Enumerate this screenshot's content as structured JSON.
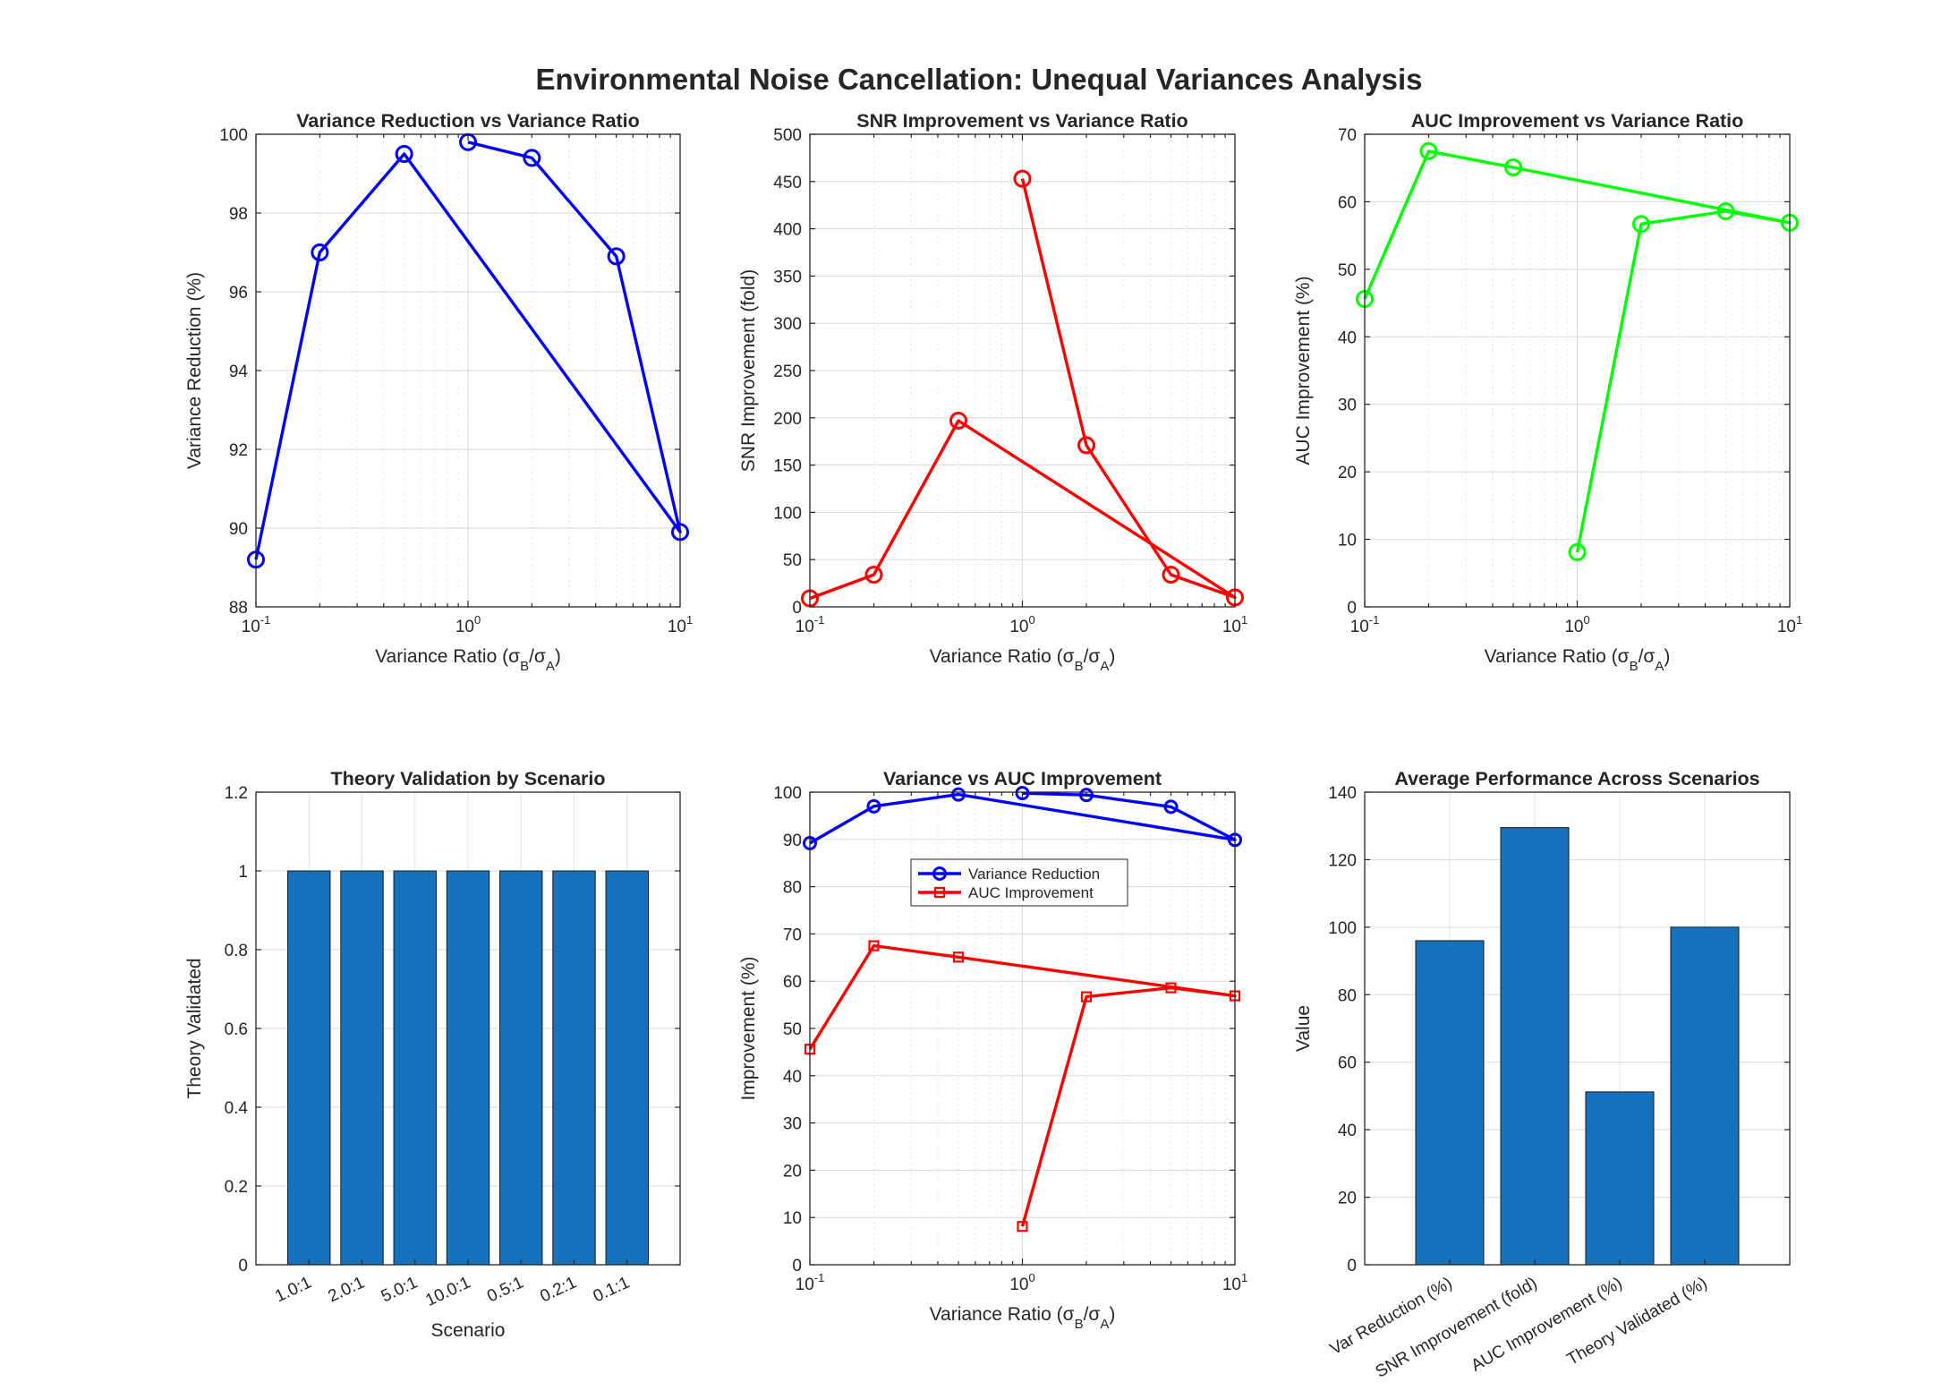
{
  "figure": {
    "title": "Environmental Noise Cancellation: Unequal Variances Analysis"
  },
  "chart_data": [
    {
      "id": "p1",
      "type": "line",
      "title": "Variance Reduction vs Variance Ratio",
      "xlabel": "Variance Ratio (σB/σA)",
      "ylabel": "Variance Reduction (%)",
      "xscale": "log",
      "xlim": [
        0.1,
        10
      ],
      "ylim": [
        88,
        100
      ],
      "yticks": [
        88,
        90,
        92,
        94,
        96,
        98,
        100
      ],
      "xticks": [
        "10^-1",
        "10^0",
        "10^1"
      ],
      "grid": true,
      "x": [
        1.0,
        2.0,
        5.0,
        10.0,
        0.5,
        0.2,
        0.1
      ],
      "series": [
        {
          "values": [
            99.8,
            99.4,
            96.9,
            89.9,
            99.5,
            97.0,
            89.2
          ],
          "color": "#0000ff",
          "marker": "circle"
        }
      ]
    },
    {
      "id": "p2",
      "type": "line",
      "title": "SNR Improvement vs Variance Ratio",
      "xlabel": "Variance Ratio (σB/σA)",
      "ylabel": "SNR Improvement (fold)",
      "xscale": "log",
      "xlim": [
        0.1,
        10
      ],
      "ylim": [
        0,
        500
      ],
      "yticks": [
        0,
        50,
        100,
        150,
        200,
        250,
        300,
        350,
        400,
        450,
        500
      ],
      "xticks": [
        "10^-1",
        "10^0",
        "10^1"
      ],
      "grid": true,
      "x": [
        1.0,
        2.0,
        5.0,
        10.0,
        0.5,
        0.2,
        0.1
      ],
      "series": [
        {
          "values": [
            453,
            171,
            34,
            10,
            197,
            34,
            9
          ],
          "color": "#ff0000",
          "marker": "circle"
        }
      ]
    },
    {
      "id": "p3",
      "type": "line",
      "title": "AUC Improvement vs Variance Ratio",
      "xlabel": "Variance Ratio (σB/σA)",
      "ylabel": "AUC Improvement (%)",
      "xscale": "log",
      "xlim": [
        0.1,
        10
      ],
      "ylim": [
        0,
        70
      ],
      "yticks": [
        0,
        10,
        20,
        30,
        40,
        50,
        60,
        70
      ],
      "xticks": [
        "10^-1",
        "10^0",
        "10^1"
      ],
      "grid": true,
      "x": [
        1.0,
        2.0,
        5.0,
        10.0,
        0.5,
        0.2,
        0.1
      ],
      "series": [
        {
          "values": [
            8.1,
            56.7,
            58.6,
            56.9,
            65.1,
            67.5,
            45.6
          ],
          "color": "#00ff00",
          "marker": "circle"
        }
      ]
    },
    {
      "id": "p4",
      "type": "bar",
      "title": "Theory Validation by Scenario",
      "xlabel": "Scenario",
      "ylabel": "Theory Validated",
      "ylim": [
        0,
        1.2
      ],
      "yticks": [
        "0",
        "0.2",
        "0.4",
        "0.6",
        "0.8",
        "1",
        "1.2"
      ],
      "grid": true,
      "categories": [
        "1.0:1",
        "2.0:1",
        "5.0:1",
        "10.0:1",
        "0.5:1",
        "0.2:1",
        "0.1:1"
      ],
      "values": [
        1,
        1,
        1,
        1,
        1,
        1,
        1
      ],
      "color": "#1772be"
    },
    {
      "id": "p5",
      "type": "line",
      "title": "Variance vs AUC Improvement",
      "xlabel": "Variance Ratio (σB/σA)",
      "ylabel": "Improvement (%)",
      "xscale": "log",
      "xlim": [
        0.1,
        10
      ],
      "ylim": [
        0,
        100
      ],
      "yticks": [
        0,
        10,
        20,
        30,
        40,
        50,
        60,
        70,
        80,
        90,
        100
      ],
      "xticks": [
        "10^-1",
        "10^0",
        "10^1"
      ],
      "grid": true,
      "legend_position": "center",
      "x": [
        1.0,
        2.0,
        5.0,
        10.0,
        0.5,
        0.2,
        0.1
      ],
      "series": [
        {
          "name": "Variance Reduction",
          "values": [
            99.8,
            99.4,
            96.9,
            89.9,
            99.5,
            97.0,
            89.2
          ],
          "color": "#0000ff",
          "marker": "circle"
        },
        {
          "name": "AUC Improvement",
          "values": [
            8.1,
            56.7,
            58.6,
            56.9,
            65.1,
            67.5,
            45.6
          ],
          "color": "#ff0000",
          "marker": "square"
        }
      ]
    },
    {
      "id": "p6",
      "type": "bar",
      "title": "Average Performance Across Scenarios",
      "xlabel": "",
      "ylabel": "Value",
      "ylim": [
        0,
        140
      ],
      "yticks": [
        "0",
        "20",
        "40",
        "60",
        "80",
        "100",
        "120",
        "140"
      ],
      "grid": true,
      "categories": [
        "Var Reduction (%)",
        "SNR Improvement (fold)",
        "AUC Improvement (%)",
        "Theory Validated (%)"
      ],
      "values": [
        96.0,
        129.5,
        51.2,
        100
      ],
      "color": "#1772be"
    }
  ]
}
